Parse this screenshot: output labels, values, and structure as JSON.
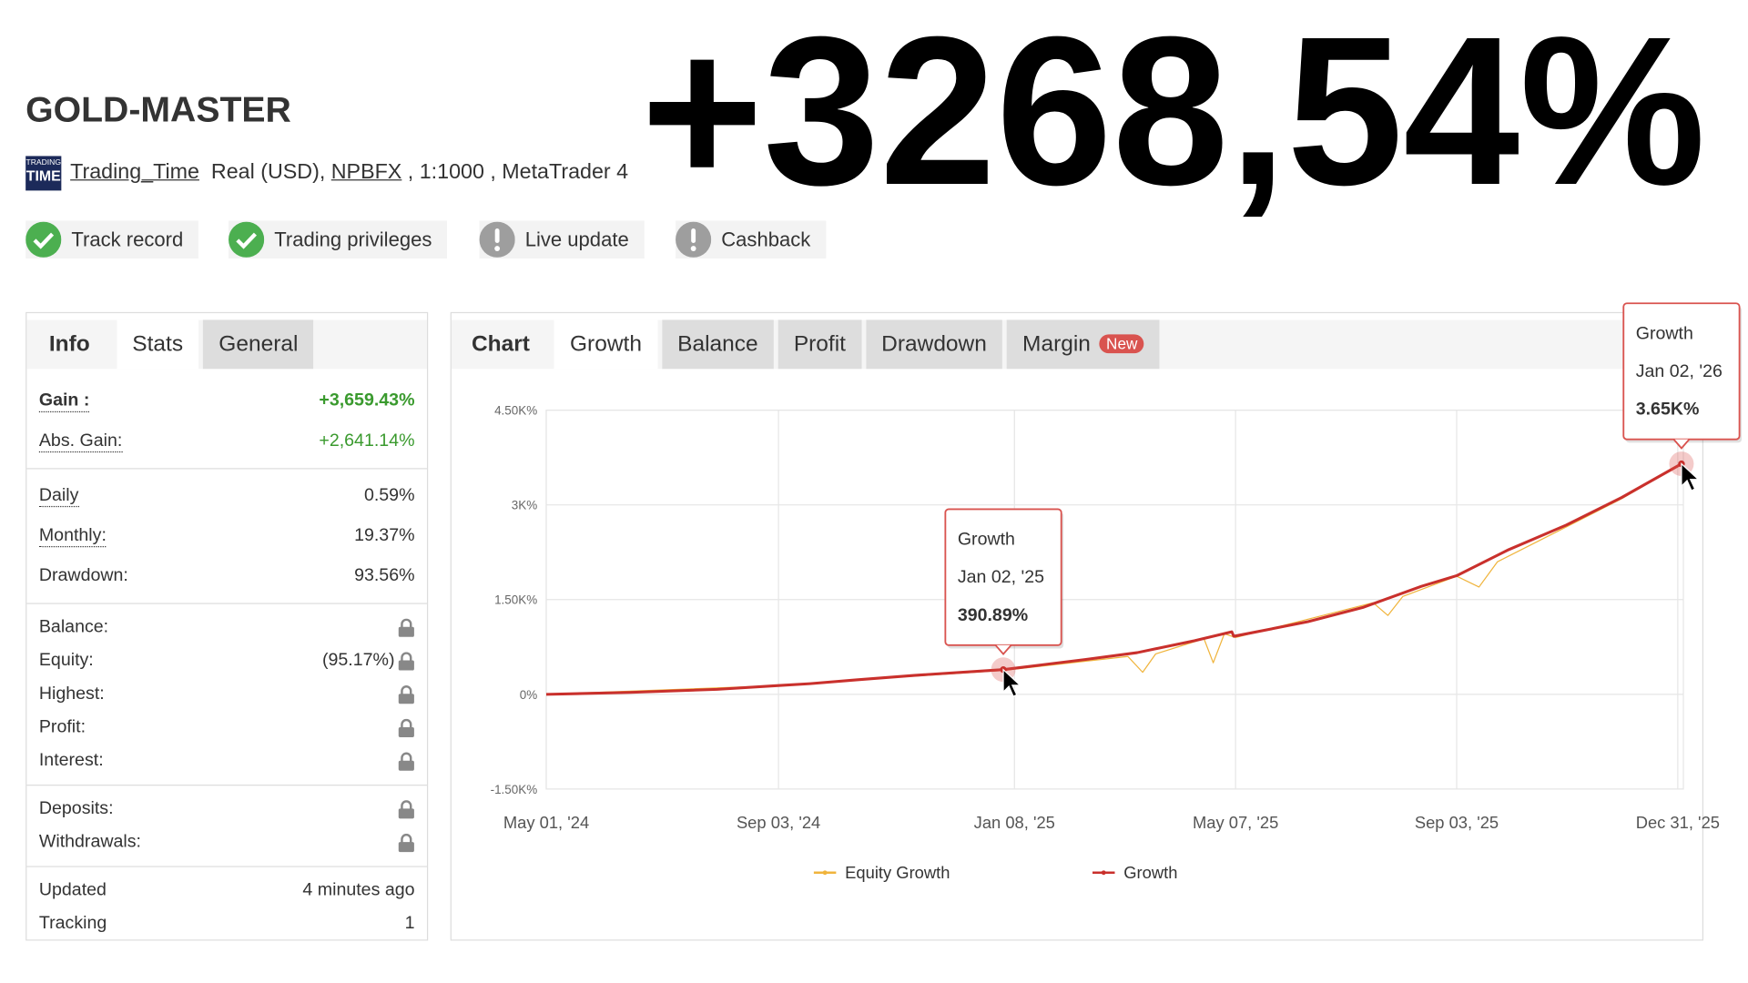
{
  "header": {
    "title": "GOLD-MASTER",
    "headline": "+3268,54%",
    "logo": [
      "TRADING",
      "TIME"
    ],
    "owner": "Trading_Time",
    "account": "Real (USD),",
    "broker": "NPBFX",
    "details": ", 1:1000 , MetaTrader 4"
  },
  "badges": [
    {
      "label": "Track record",
      "status": "ok"
    },
    {
      "label": "Trading privileges",
      "status": "ok"
    },
    {
      "label": "Live update",
      "status": "warn"
    },
    {
      "label": "Cashback",
      "status": "warn"
    }
  ],
  "stats": {
    "tabs": [
      "Info",
      "Stats",
      "General"
    ],
    "active_tab": 1,
    "groups": [
      [
        {
          "label": "Gain :",
          "value": "+3,659.43%",
          "accent": true,
          "hint": true,
          "bold": true
        },
        {
          "label": "Abs. Gain:",
          "value": "+2,641.14%",
          "accent": true,
          "hint": true
        }
      ],
      [
        {
          "label": "Daily",
          "value": "0.59%",
          "hint": true
        },
        {
          "label": "Monthly:",
          "value": "19.37%",
          "hint": true
        },
        {
          "label": "Drawdown:",
          "value": "93.56%"
        }
      ],
      [
        {
          "label": "Balance:",
          "locked": true
        },
        {
          "label": "Equity:",
          "value": "(95.17%)",
          "locked": true
        },
        {
          "label": "Highest:",
          "locked": true
        },
        {
          "label": "Profit:",
          "locked": true
        },
        {
          "label": "Interest:",
          "locked": true
        }
      ],
      [
        {
          "label": "Deposits:",
          "locked": true
        },
        {
          "label": "Withdrawals:",
          "locked": true
        }
      ],
      [
        {
          "label": "Updated",
          "value": "4 minutes ago"
        },
        {
          "label": "Tracking",
          "value": "1"
        }
      ]
    ]
  },
  "chart_tabs": {
    "items": [
      "Chart",
      "Growth",
      "Balance",
      "Profit",
      "Drawdown",
      "Margin"
    ],
    "badge": "New",
    "active": 1
  },
  "chart_data": {
    "type": "line",
    "grid": true,
    "xlim": [
      "2024-05-01",
      "2026-01-03"
    ],
    "xticks": [
      {
        "value": "2024-05-01",
        "label": "May 01, '24"
      },
      {
        "value": "2024-09-03",
        "label": "Sep 03, '24"
      },
      {
        "value": "2025-01-08",
        "label": "Jan 08, '25"
      },
      {
        "value": "2025-05-07",
        "label": "May 07, '25"
      },
      {
        "value": "2025-09-03",
        "label": "Sep 03, '25"
      },
      {
        "value": "2025-12-31",
        "label": "Dec 31, '25"
      }
    ],
    "ylim": [
      -1500,
      4500
    ],
    "yticks": [
      {
        "value": -1500,
        "label": "-1.50K%"
      },
      {
        "value": 0,
        "label": "0%"
      },
      {
        "value": 1500,
        "label": "1.50K%"
      },
      {
        "value": 3000,
        "label": "3K%"
      },
      {
        "value": 4500,
        "label": "4.50K%"
      }
    ],
    "series": [
      {
        "name": "Equity Growth",
        "color": "#f0b43c",
        "width": 1,
        "x": [
          "2024-05-01",
          "2024-09-03",
          "2024-10-15",
          "2025-01-02",
          "2025-03-10",
          "2025-03-18",
          "2025-03-25",
          "2025-04-20",
          "2025-04-25",
          "2025-05-01",
          "2025-05-07",
          "2025-07-20",
          "2025-07-28",
          "2025-08-05",
          "2025-09-03",
          "2025-09-15",
          "2025-09-25",
          "2025-11-01",
          "2025-12-01",
          "2026-01-02"
        ],
        "values": [
          0,
          140,
          230,
          380,
          600,
          350,
          640,
          880,
          500,
          960,
          900,
          1450,
          1250,
          1550,
          1870,
          1700,
          2100,
          2650,
          3100,
          3650
        ]
      },
      {
        "name": "Growth",
        "color": "#c9302c",
        "width": 2.5,
        "x": [
          "2024-05-01",
          "2024-06-15",
          "2024-08-01",
          "2024-09-03",
          "2024-09-20",
          "2024-10-15",
          "2024-11-15",
          "2025-01-02",
          "2025-02-15",
          "2025-03-15",
          "2025-04-15",
          "2025-05-05",
          "2025-05-06",
          "2025-06-15",
          "2025-07-15",
          "2025-08-15",
          "2025-09-03",
          "2025-10-01",
          "2025-11-01",
          "2025-12-01",
          "2026-01-02"
        ],
        "values": [
          0,
          30,
          80,
          140,
          170,
          230,
          300,
          390.89,
          550,
          660,
          850,
          990,
          920,
          1150,
          1380,
          1710,
          1880,
          2290,
          2680,
          3120,
          3650
        ]
      }
    ],
    "tooltips": [
      {
        "title": "Growth",
        "date": "Jan 02, '25",
        "x": "2025-01-02",
        "value": 390.89,
        "label": "390.89%"
      },
      {
        "title": "Growth",
        "date": "Jan 02, '26",
        "x": "2026-01-02",
        "value": 3650,
        "label": "3.65K%"
      }
    ]
  }
}
